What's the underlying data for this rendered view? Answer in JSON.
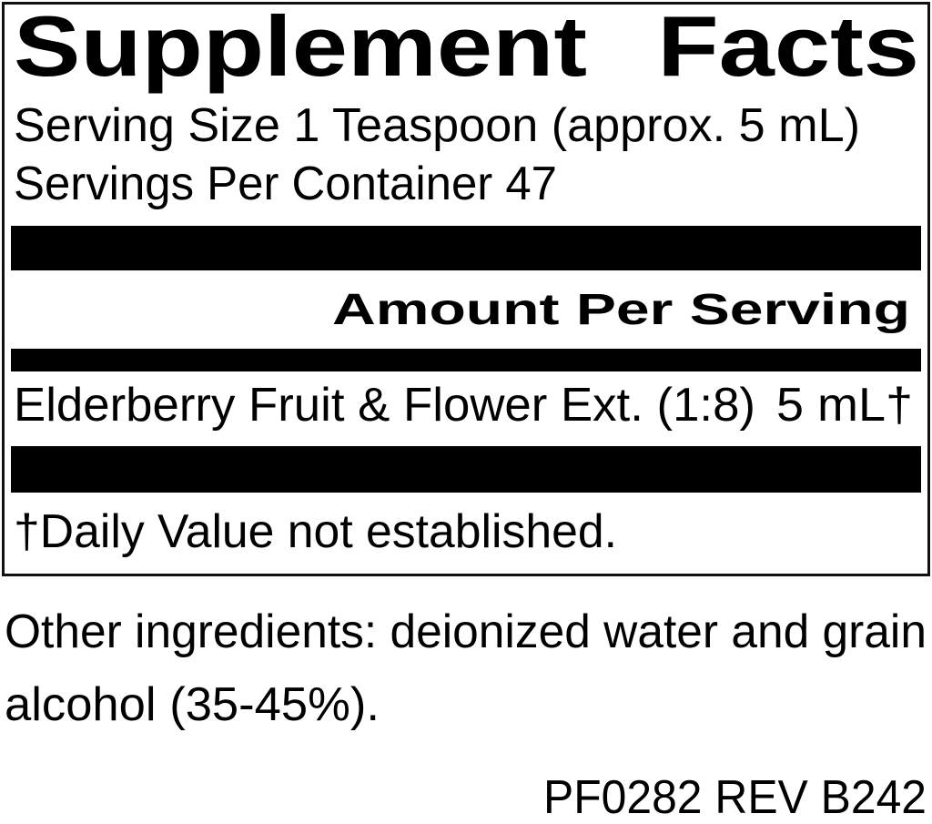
{
  "label": {
    "title": "Supplement Facts",
    "serving_size": "Serving Size 1 Teaspoon (approx. 5 mL)",
    "servings_per_container": "Servings Per Container 47",
    "amount_header": "Amount Per Serving",
    "ingredients": [
      {
        "name": "Elderberry Fruit & Flower Ext. (1:8)",
        "amount": "5 mL†"
      }
    ],
    "footnote": "†Daily Value not established."
  },
  "other_ingredients": {
    "line1": "Other ingredients: deionized water and grain",
    "line2": "alcohol (35-45%)."
  },
  "product_code": "PF0282 REV B242"
}
